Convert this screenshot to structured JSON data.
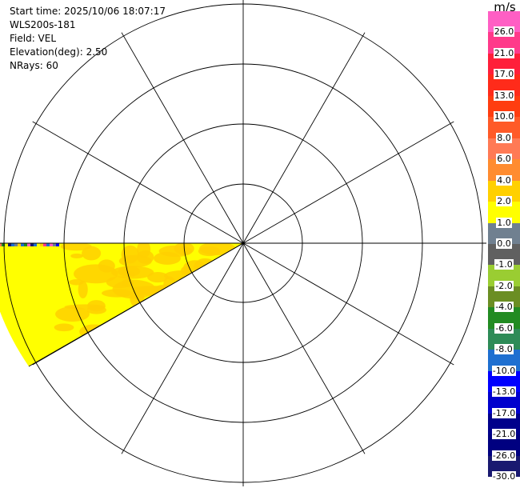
{
  "header": {
    "start_time": "Start time: 2025/10/06 18:07:17",
    "instrument": "WLS200s-181",
    "field": "Field: VEL",
    "elevation": "Elevation(deg): 2.50",
    "nrays": "NRays: 60"
  },
  "colorbar": {
    "unit": "m/s",
    "ticks": [
      "26.0",
      "21.0",
      "17.0",
      "13.0",
      "10.0",
      "8.0",
      "6.0",
      "4.0",
      "2.0",
      "1.0",
      "0.0",
      "-1.0",
      "-2.0",
      "-4.0",
      "-6.0",
      "-8.0",
      "-10.0",
      "-13.0",
      "-17.0",
      "-21.0",
      "-26.0",
      "-30.0"
    ],
    "colors": [
      "#ff5fc4",
      "#ff3a8a",
      "#ff1f3a",
      "#ff2b1a",
      "#ff3d10",
      "#ff5a28",
      "#ff7a55",
      "#ff8c30",
      "#ffd000",
      "#ffff00",
      "#708090",
      "#606060",
      "#9acd32",
      "#6b8e23",
      "#228b22",
      "#2e8b57",
      "#1e6fd0",
      "#0000ff",
      "#0000cd",
      "#00008b",
      "#000080",
      "#191970"
    ]
  },
  "chart_data": {
    "type": "polar-ppi",
    "field": "VEL",
    "unit": "m/s",
    "range_rings": 4,
    "spokes": 12,
    "sector_azimuth_deg": [
      240,
      270
    ],
    "dominant_values": [
      {
        "label": "near range",
        "value": 1.0
      },
      {
        "label": "mid range",
        "value": 2.0
      },
      {
        "label": "far range",
        "value": "noisy, mixed -30.0 to 26.0"
      }
    ]
  }
}
